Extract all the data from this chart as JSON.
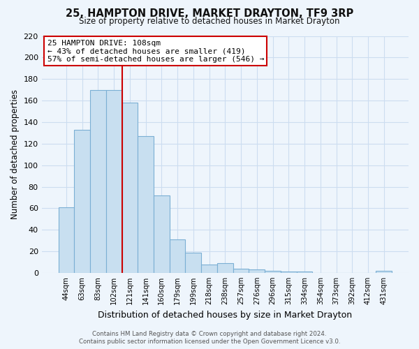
{
  "title": "25, HAMPTON DRIVE, MARKET DRAYTON, TF9 3RP",
  "subtitle": "Size of property relative to detached houses in Market Drayton",
  "xlabel": "Distribution of detached houses by size in Market Drayton",
  "ylabel": "Number of detached properties",
  "bar_labels": [
    "44sqm",
    "63sqm",
    "83sqm",
    "102sqm",
    "121sqm",
    "141sqm",
    "160sqm",
    "179sqm",
    "199sqm",
    "218sqm",
    "238sqm",
    "257sqm",
    "276sqm",
    "296sqm",
    "315sqm",
    "334sqm",
    "354sqm",
    "373sqm",
    "392sqm",
    "412sqm",
    "431sqm"
  ],
  "bar_values": [
    61,
    133,
    170,
    170,
    158,
    127,
    72,
    31,
    19,
    8,
    9,
    4,
    3,
    2,
    1,
    1,
    0,
    0,
    0,
    0,
    2
  ],
  "bar_color": "#c8dff0",
  "bar_edge_color": "#7bafd4",
  "vline_color": "#cc0000",
  "vline_pos": 3.5,
  "ylim": [
    0,
    220
  ],
  "yticks": [
    0,
    20,
    40,
    60,
    80,
    100,
    120,
    140,
    160,
    180,
    200,
    220
  ],
  "annotation_title": "25 HAMPTON DRIVE: 108sqm",
  "annotation_line1": "← 43% of detached houses are smaller (419)",
  "annotation_line2": "57% of semi-detached houses are larger (546) →",
  "annotation_box_facecolor": "#ffffff",
  "annotation_box_edgecolor": "#cc0000",
  "footer_line1": "Contains HM Land Registry data © Crown copyright and database right 2024.",
  "footer_line2": "Contains public sector information licensed under the Open Government Licence v3.0.",
  "grid_color": "#ccddf0",
  "background_color": "#eef5fc"
}
